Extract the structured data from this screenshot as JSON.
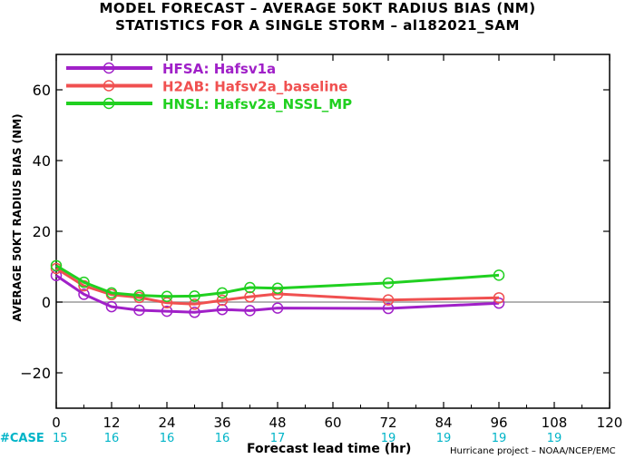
{
  "title": "MODEL FORECAST – AVERAGE 50KT RADIUS BIAS (NM)",
  "subtitle": "STATISTICS FOR A SINGLE STORM – al182021_SAM",
  "credit": "Hurricane project – NOAA/NCEP/EMC",
  "case_label": "#CASE",
  "colors": {
    "case_label": "#00b4c8",
    "zero_line": "#9a9a9a",
    "axis": "#000000"
  },
  "chart_data": {
    "type": "line",
    "xlabel": "Forecast lead time (hr)",
    "ylabel": "AVERAGE 50KT RADIUS BIAS (NM)",
    "xlim": [
      0,
      120
    ],
    "ylim": [
      -30,
      70
    ],
    "xticks": [
      0,
      12,
      24,
      36,
      48,
      60,
      72,
      84,
      96,
      108,
      120
    ],
    "yticks": [
      -20,
      0,
      20,
      40,
      60
    ],
    "grid": false,
    "legend_position": "top-left",
    "zero_line": true,
    "case_counts": {
      "x": [
        0,
        12,
        24,
        36,
        48,
        72,
        84,
        96,
        108
      ],
      "values": [
        "15",
        "16",
        "16",
        "16",
        "17",
        "19",
        "19",
        "19",
        "19"
      ]
    },
    "series": [
      {
        "name": "HFSA: Hafsv1a",
        "color": "#a020c8",
        "x": [
          0,
          6,
          12,
          18,
          24,
          30,
          36,
          42,
          48,
          72,
          96
        ],
        "y": [
          7.5,
          2.2,
          -1.3,
          -2.3,
          -2.6,
          -2.9,
          -2.1,
          -2.4,
          -1.7,
          -1.8,
          -0.3
        ]
      },
      {
        "name": "H2AB: Hafsv2a_baseline",
        "color": "#f05050",
        "x": [
          0,
          6,
          12,
          18,
          24,
          30,
          36,
          42,
          48,
          72,
          96
        ],
        "y": [
          9.5,
          4.6,
          2.1,
          1.3,
          -0.2,
          -0.6,
          0.5,
          1.5,
          2.3,
          0.6,
          1.2
        ]
      },
      {
        "name": "HNSL: Hafsv2a_NSSL_MP",
        "color": "#20d020",
        "x": [
          0,
          6,
          12,
          18,
          24,
          30,
          36,
          42,
          48,
          72,
          96
        ],
        "y": [
          10.3,
          5.6,
          2.6,
          1.9,
          1.6,
          1.7,
          2.6,
          4.1,
          3.9,
          5.4,
          7.6
        ]
      }
    ]
  }
}
